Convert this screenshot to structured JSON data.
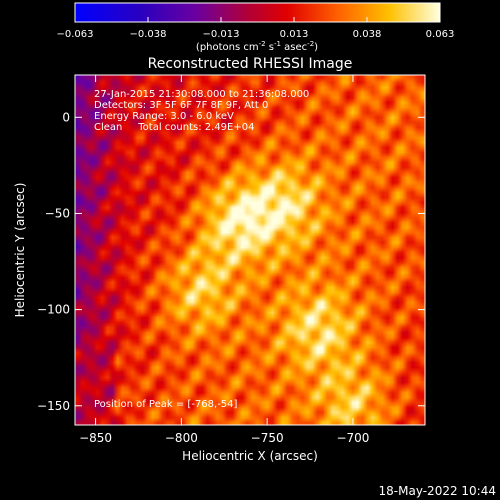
{
  "chart_data": {
    "type": "heatmap",
    "title": "Reconstructed RHESSI Image",
    "xlabel": "Heliocentric X (arcsec)",
    "ylabel": "Heliocentric Y (arcsec)",
    "xlim": [
      -862,
      -658
    ],
    "ylim": [
      -160,
      22
    ],
    "xticks": [
      -850,
      -800,
      -750,
      -700
    ],
    "yticks": [
      0,
      -50,
      -100,
      -150
    ],
    "colorbar": {
      "ticks": [
        "-0.063",
        "-0.038",
        "-0.013",
        "0.013",
        "0.038",
        "0.063"
      ],
      "range": [
        -0.063,
        0.063
      ],
      "colormap": "rainbow-like (blue-purple-red-orange-yellow-white)"
    },
    "annotations": [
      "27-Jan-2015 21:30:08.000 to 21:36:08.000",
      "Detectors: 3F 5F 6F 7F 8F 9F, Att 0",
      "Energy Range: 3.0 - 6.0 keV",
      "Clean     Total counts: 2.49E+04"
    ],
    "peak_label": "Position of Peak = [-768,-54]",
    "peak": {
      "x": -768,
      "y": -54,
      "value": 0.063
    },
    "sources": [
      {
        "x": -768,
        "y": -54,
        "amplitude": 0.063
      },
      {
        "x": -740,
        "y": -45,
        "amplitude": 0.05
      },
      {
        "x": -790,
        "y": -90,
        "amplitude": 0.048
      },
      {
        "x": -720,
        "y": -110,
        "amplitude": 0.048
      },
      {
        "x": -700,
        "y": -150,
        "amplitude": 0.045
      }
    ]
  },
  "colorbar_units_prefix": "(photons cm",
  "colorbar_units_exp1": "-2",
  "colorbar_units_mid1": " s",
  "colorbar_units_exp2": "-1",
  "colorbar_units_mid2": " asec",
  "colorbar_units_exp3": "-2",
  "colorbar_units_suffix": ")",
  "timestamp": "18-May-2022 10:44"
}
